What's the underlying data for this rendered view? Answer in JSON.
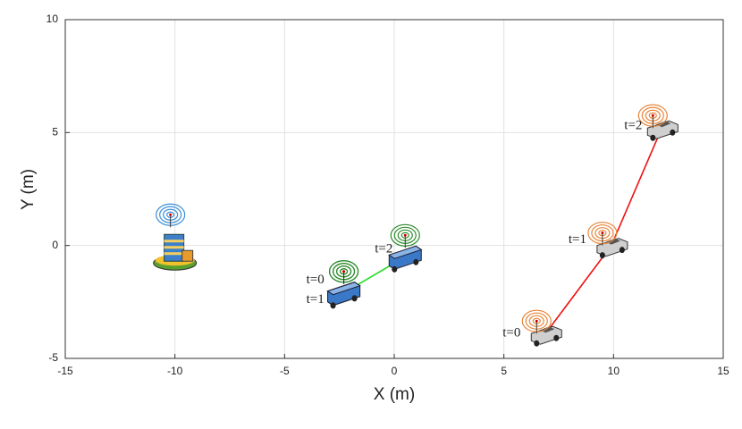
{
  "chart_data": {
    "type": "line",
    "xlabel": "X (m)",
    "ylabel": "Y (m)",
    "xlim": [
      -15,
      15
    ],
    "ylim": [
      -5,
      10
    ],
    "xticks": [
      -15,
      -10,
      -5,
      0,
      5,
      10,
      15
    ],
    "yticks": [
      -5,
      0,
      5,
      10
    ],
    "grid": true,
    "series": [
      {
        "icon": "tower",
        "x": [
          -10
        ],
        "y": [
          -0.3
        ]
      },
      {
        "icon": "bus",
        "color": "#22dd22",
        "x": [
          -2.3,
          -2.3,
          0.5
        ],
        "y": [
          -2.1,
          -2.1,
          -0.5
        ],
        "labels": [
          "t=0",
          "t=1",
          "t=2"
        ]
      },
      {
        "icon": "car",
        "color": "#ee1111",
        "x": [
          6.9,
          9.9,
          12.2
        ],
        "y": [
          -3.9,
          0.0,
          5.2
        ],
        "labels": [
          "t=0",
          "t=1",
          "t=2"
        ]
      }
    ]
  }
}
